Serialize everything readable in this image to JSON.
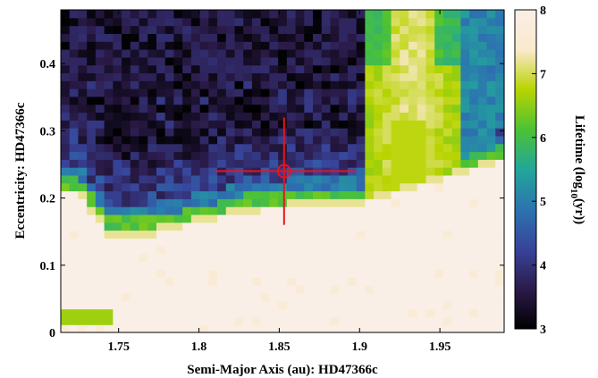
{
  "chart_data": {
    "type": "heatmap",
    "title": "",
    "xlabel": "Semi-Major Axis (au): HD47366c",
    "ylabel": "Eccentricity: HD47366c",
    "xlim": [
      1.714,
      1.99
    ],
    "ylim": [
      0,
      0.48
    ],
    "xticks": [
      1.75,
      1.8,
      1.85,
      1.9,
      1.95
    ],
    "xtick_labels": [
      "1.75",
      "1.8",
      "1.85",
      "1.9",
      "1.95"
    ],
    "yticks": [
      0,
      0.1,
      0.2,
      0.3,
      0.4
    ],
    "ytick_labels": [
      "0",
      "0.1",
      "0.2",
      "0.3",
      "0.4"
    ],
    "grid": false,
    "colorbar": {
      "label_main": "Lifetime (log",
      "label_sub": "10",
      "label_tail": "(yr))",
      "min": 3,
      "max": 8,
      "ticks": [
        3,
        4,
        5,
        6,
        7,
        8
      ],
      "tick_labels": [
        "3",
        "4",
        "5",
        "6",
        "7",
        "8"
      ],
      "colors": [
        "#000000",
        "#2b1b4a",
        "#38439a",
        "#2c74b0",
        "#22a69a",
        "#4cc235",
        "#b8d400",
        "#fbe9cd",
        "#f9efe6"
      ]
    },
    "nominal_orbit": {
      "a": 1.853,
      "e": 0.24,
      "a_err": [
        1.81,
        1.897
      ],
      "e_err": [
        0.16,
        0.32
      ],
      "color": "#e8141b"
    },
    "grid_size": {
      "nx": 51,
      "ny": 41
    },
    "notes": "Lifetime map over (a, e) grid: stable (log10 lifetime = 8) region at low eccentricity, unstable (~3-4) at high eccentricity, with a stable green/yellow tongue near a = 1.93 extending to high e."
  }
}
